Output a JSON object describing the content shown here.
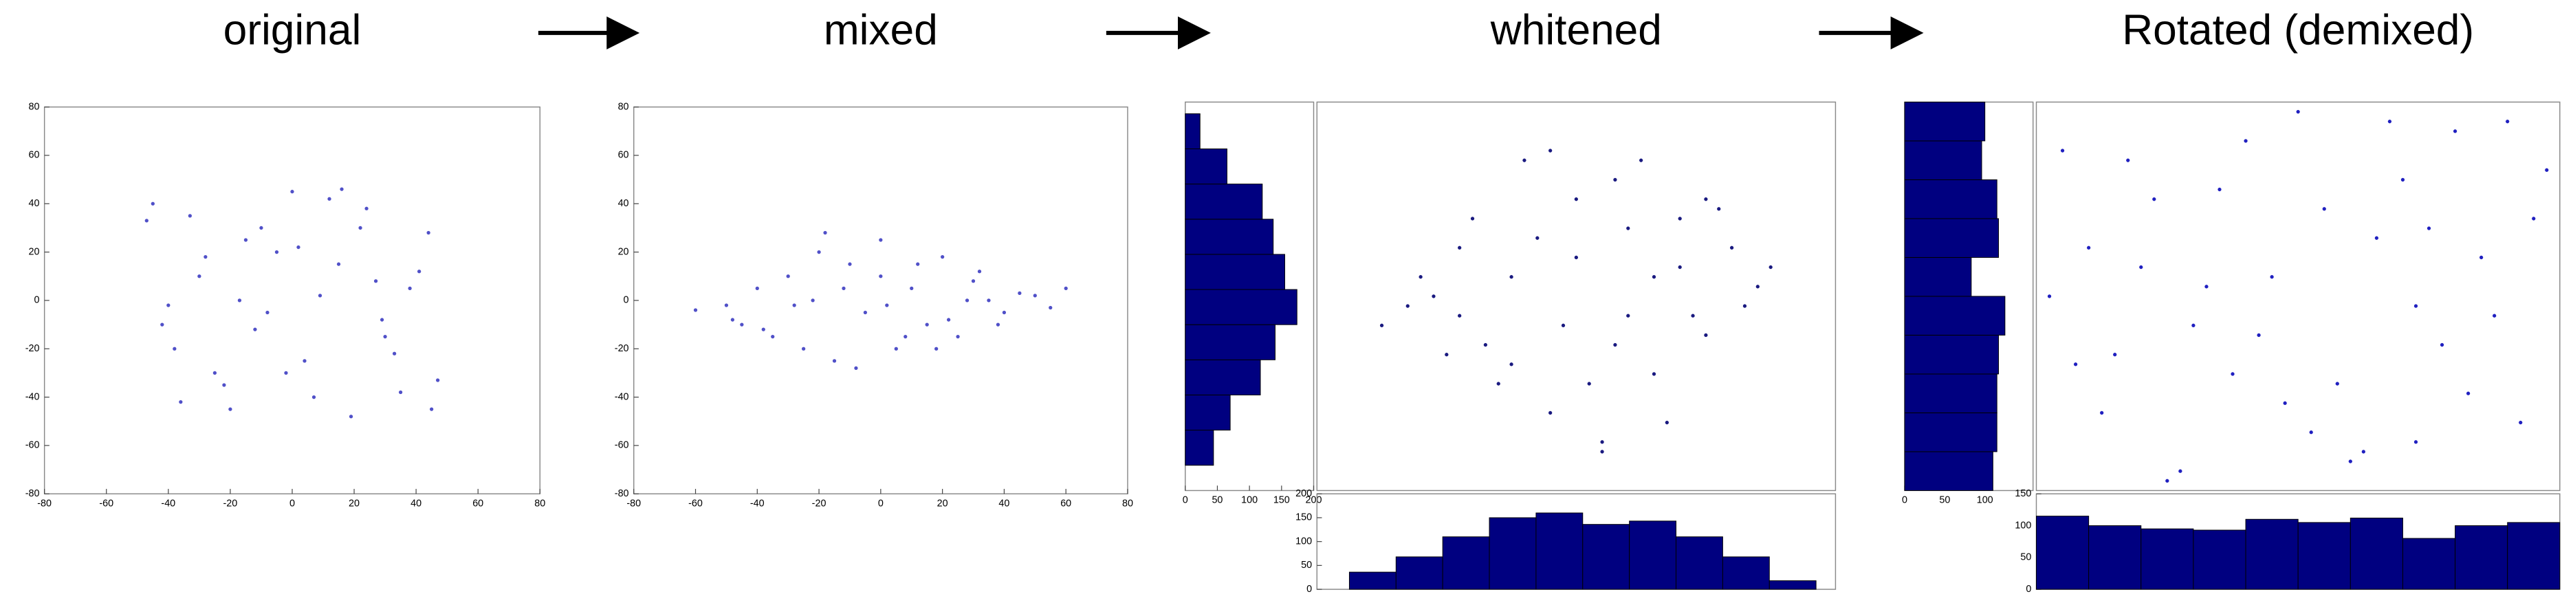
{
  "chart_data": [
    {
      "type": "scatter",
      "title": "original",
      "color": "#5050c8",
      "x": [
        -45,
        -38,
        -30,
        -22,
        -15,
        -8,
        0,
        7,
        15,
        22,
        30,
        38,
        45,
        -42,
        -33,
        -25,
        -17,
        -5,
        4,
        12,
        19,
        27,
        35,
        44,
        -47,
        -36,
        -28,
        -12,
        -2,
        9,
        24,
        33,
        41,
        -40,
        -20,
        2,
        16,
        29,
        47,
        -10
      ],
      "values": [
        40,
        -20,
        10,
        -35,
        25,
        -5,
        45,
        -40,
        15,
        30,
        -15,
        5,
        -45,
        -10,
        35,
        -30,
        0,
        20,
        -25,
        42,
        -48,
        8,
        -38,
        28,
        33,
        -42,
        18,
        -12,
        -30,
        2,
        38,
        -22,
        12,
        -2,
        -45,
        22,
        46,
        -8,
        -33,
        30
      ],
      "xlim": [
        -80,
        80
      ],
      "ylim": [
        -80,
        80
      ],
      "xticks": [
        -80,
        -60,
        -40,
        -20,
        0,
        20,
        40,
        60,
        80
      ],
      "yticks": [
        -80,
        -60,
        -40,
        -20,
        0,
        20,
        40,
        60,
        80
      ]
    },
    {
      "type": "scatter",
      "title": "mixed",
      "color": "#5050c8",
      "x": [
        -60,
        -50,
        -45,
        -40,
        -35,
        -30,
        -25,
        -20,
        -15,
        -10,
        -5,
        0,
        5,
        10,
        15,
        20,
        25,
        30,
        35,
        40,
        45,
        50,
        55,
        60,
        -38,
        -28,
        -18,
        -8,
        2,
        12,
        22,
        32,
        -48,
        -22,
        0,
        18,
        38,
        -12,
        8,
        28
      ],
      "values": [
        -4,
        -2,
        -10,
        5,
        -15,
        10,
        -20,
        20,
        -25,
        15,
        -5,
        25,
        -20,
        5,
        -10,
        18,
        -15,
        8,
        0,
        -5,
        3,
        2,
        -3,
        5,
        -12,
        -2,
        28,
        -28,
        -2,
        15,
        -8,
        12,
        -8,
        0,
        10,
        -20,
        -10,
        5,
        -15,
        0
      ],
      "xlim": [
        -80,
        80
      ],
      "ylim": [
        -80,
        80
      ],
      "xticks": [
        -80,
        -60,
        -40,
        -20,
        0,
        20,
        40,
        60,
        80
      ],
      "yticks": [
        -80,
        -60,
        -40,
        -20,
        0,
        20,
        40,
        60,
        80
      ]
    },
    {
      "type": "scatter",
      "title": "whitened",
      "color": "#1a1a80",
      "x": [
        -1.5,
        -1.2,
        -1.0,
        -0.8,
        -0.6,
        -0.4,
        -0.2,
        0,
        0.2,
        0.4,
        0.6,
        0.8,
        1.0,
        1.2,
        1.4,
        -1.3,
        -0.9,
        -0.5,
        -0.1,
        0.3,
        0.7,
        1.1,
        1.5,
        -0.7,
        -0.3,
        0.1,
        0.5,
        0.9,
        -1.1,
        -0.5,
        0.0,
        0.4,
        0.8,
        1.3,
        -0.2,
        0.2,
        0.6,
        -0.9,
        0.3,
        1.0
      ],
      "values": [
        -0.3,
        0.2,
        -0.6,
        0.8,
        -0.9,
        1.4,
        -1.2,
        1.0,
        -1.5,
        0.7,
        -0.8,
        0.3,
        -0.4,
        0.5,
        0.1,
        -0.1,
        0.5,
        0.2,
        -0.3,
        1.2,
        -1.3,
        0.9,
        0.3,
        -0.5,
        0.6,
        -0.9,
        1.4,
        -0.2,
        0.0,
        -0.7,
        0.4,
        -0.2,
        0.8,
        -0.1,
        1.5,
        -1.6,
        0.2,
        -0.2,
        -0.5,
        1.0
      ],
      "xlim": [
        -2,
        2
      ],
      "ylim": [
        -2,
        2
      ]
    },
    {
      "type": "histogram",
      "orientation": "horizontal",
      "color": "#000080",
      "bins": [
        -1.74,
        -1.378,
        -1.016,
        -0.654,
        -0.292,
        0.07,
        0.432,
        0.794,
        1.156,
        1.518,
        1.88
      ],
      "values": [
        44,
        70,
        117,
        140,
        174,
        155,
        137,
        120,
        65,
        23
      ],
      "ylim": [
        -2,
        2
      ],
      "xlim": [
        0,
        200
      ],
      "xticks": [
        0,
        50,
        100,
        150,
        200
      ]
    },
    {
      "type": "histogram",
      "orientation": "vertical",
      "color": "#000080",
      "bins": [
        -1.75,
        -1.39,
        -1.03,
        -0.67,
        -0.31,
        0.05,
        0.41,
        0.77,
        1.13,
        1.49,
        1.85
      ],
      "values": [
        36,
        68,
        110,
        150,
        160,
        136,
        143,
        110,
        68,
        18
      ],
      "xlim": [
        -2,
        2
      ],
      "ylim": [
        0,
        200
      ],
      "yticks": [
        0,
        50,
        100,
        150,
        200
      ]
    },
    {
      "type": "scatter",
      "title": "Rotated (demixed)",
      "color": "#2020c0",
      "x": [
        -1.8,
        -1.5,
        -1.2,
        -0.9,
        -0.6,
        -0.3,
        0,
        0.3,
        0.6,
        0.9,
        1.2,
        1.5,
        1.8,
        -1.7,
        -1.3,
        -1.0,
        -0.7,
        -0.4,
        -0.1,
        0.2,
        0.5,
        0.8,
        1.1,
        1.4,
        1.7,
        -1.9,
        -1.1,
        -0.5,
        0.1,
        0.7,
        1.3,
        1.9,
        -1.6,
        -0.8,
        0.4,
        1.0,
        -0.2,
        1.6,
        -1.4,
        0.9
      ],
      "values": [
        1.5,
        -1.2,
        0.3,
        -1.8,
        1.1,
        -0.4,
        1.9,
        -0.9,
        0.6,
        -1.5,
        1.7,
        -0.2,
        0.8,
        -0.7,
        1.4,
        -1.9,
        0.1,
        1.6,
        -1.1,
        0.9,
        -1.6,
        1.2,
        -0.5,
        0.4,
        -1.3,
        0.0,
        1.0,
        -0.8,
        -1.4,
        1.8,
        -1.0,
        1.3,
        0.5,
        -0.3,
        -1.7,
        0.7,
        0.2,
        1.8,
        -0.6,
        -0.1
      ],
      "xlim": [
        -2,
        2
      ],
      "ylim": [
        -2,
        2
      ]
    },
    {
      "type": "histogram",
      "orientation": "horizontal",
      "color": "#000080",
      "bins": [
        -2,
        -1.6,
        -1.2,
        -0.8,
        -0.4,
        0,
        0.4,
        0.8,
        1.2,
        1.6,
        2
      ],
      "values": [
        110,
        115,
        115,
        117,
        125,
        83,
        117,
        115,
        96,
        100
      ],
      "ylim": [
        -2,
        2
      ],
      "xlim": [
        0,
        160
      ],
      "xticks": [
        0,
        50,
        100
      ]
    },
    {
      "type": "histogram",
      "orientation": "vertical",
      "color": "#000080",
      "bins": [
        -2,
        -1.6,
        -1.2,
        -0.8,
        -0.4,
        0,
        0.4,
        0.8,
        1.2,
        1.6,
        2
      ],
      "values": [
        115,
        100,
        95,
        93,
        110,
        105,
        112,
        80,
        100,
        105
      ],
      "xlim": [
        -2,
        2
      ],
      "ylim": [
        0,
        150
      ],
      "yticks": [
        0,
        50,
        100,
        150
      ]
    }
  ]
}
